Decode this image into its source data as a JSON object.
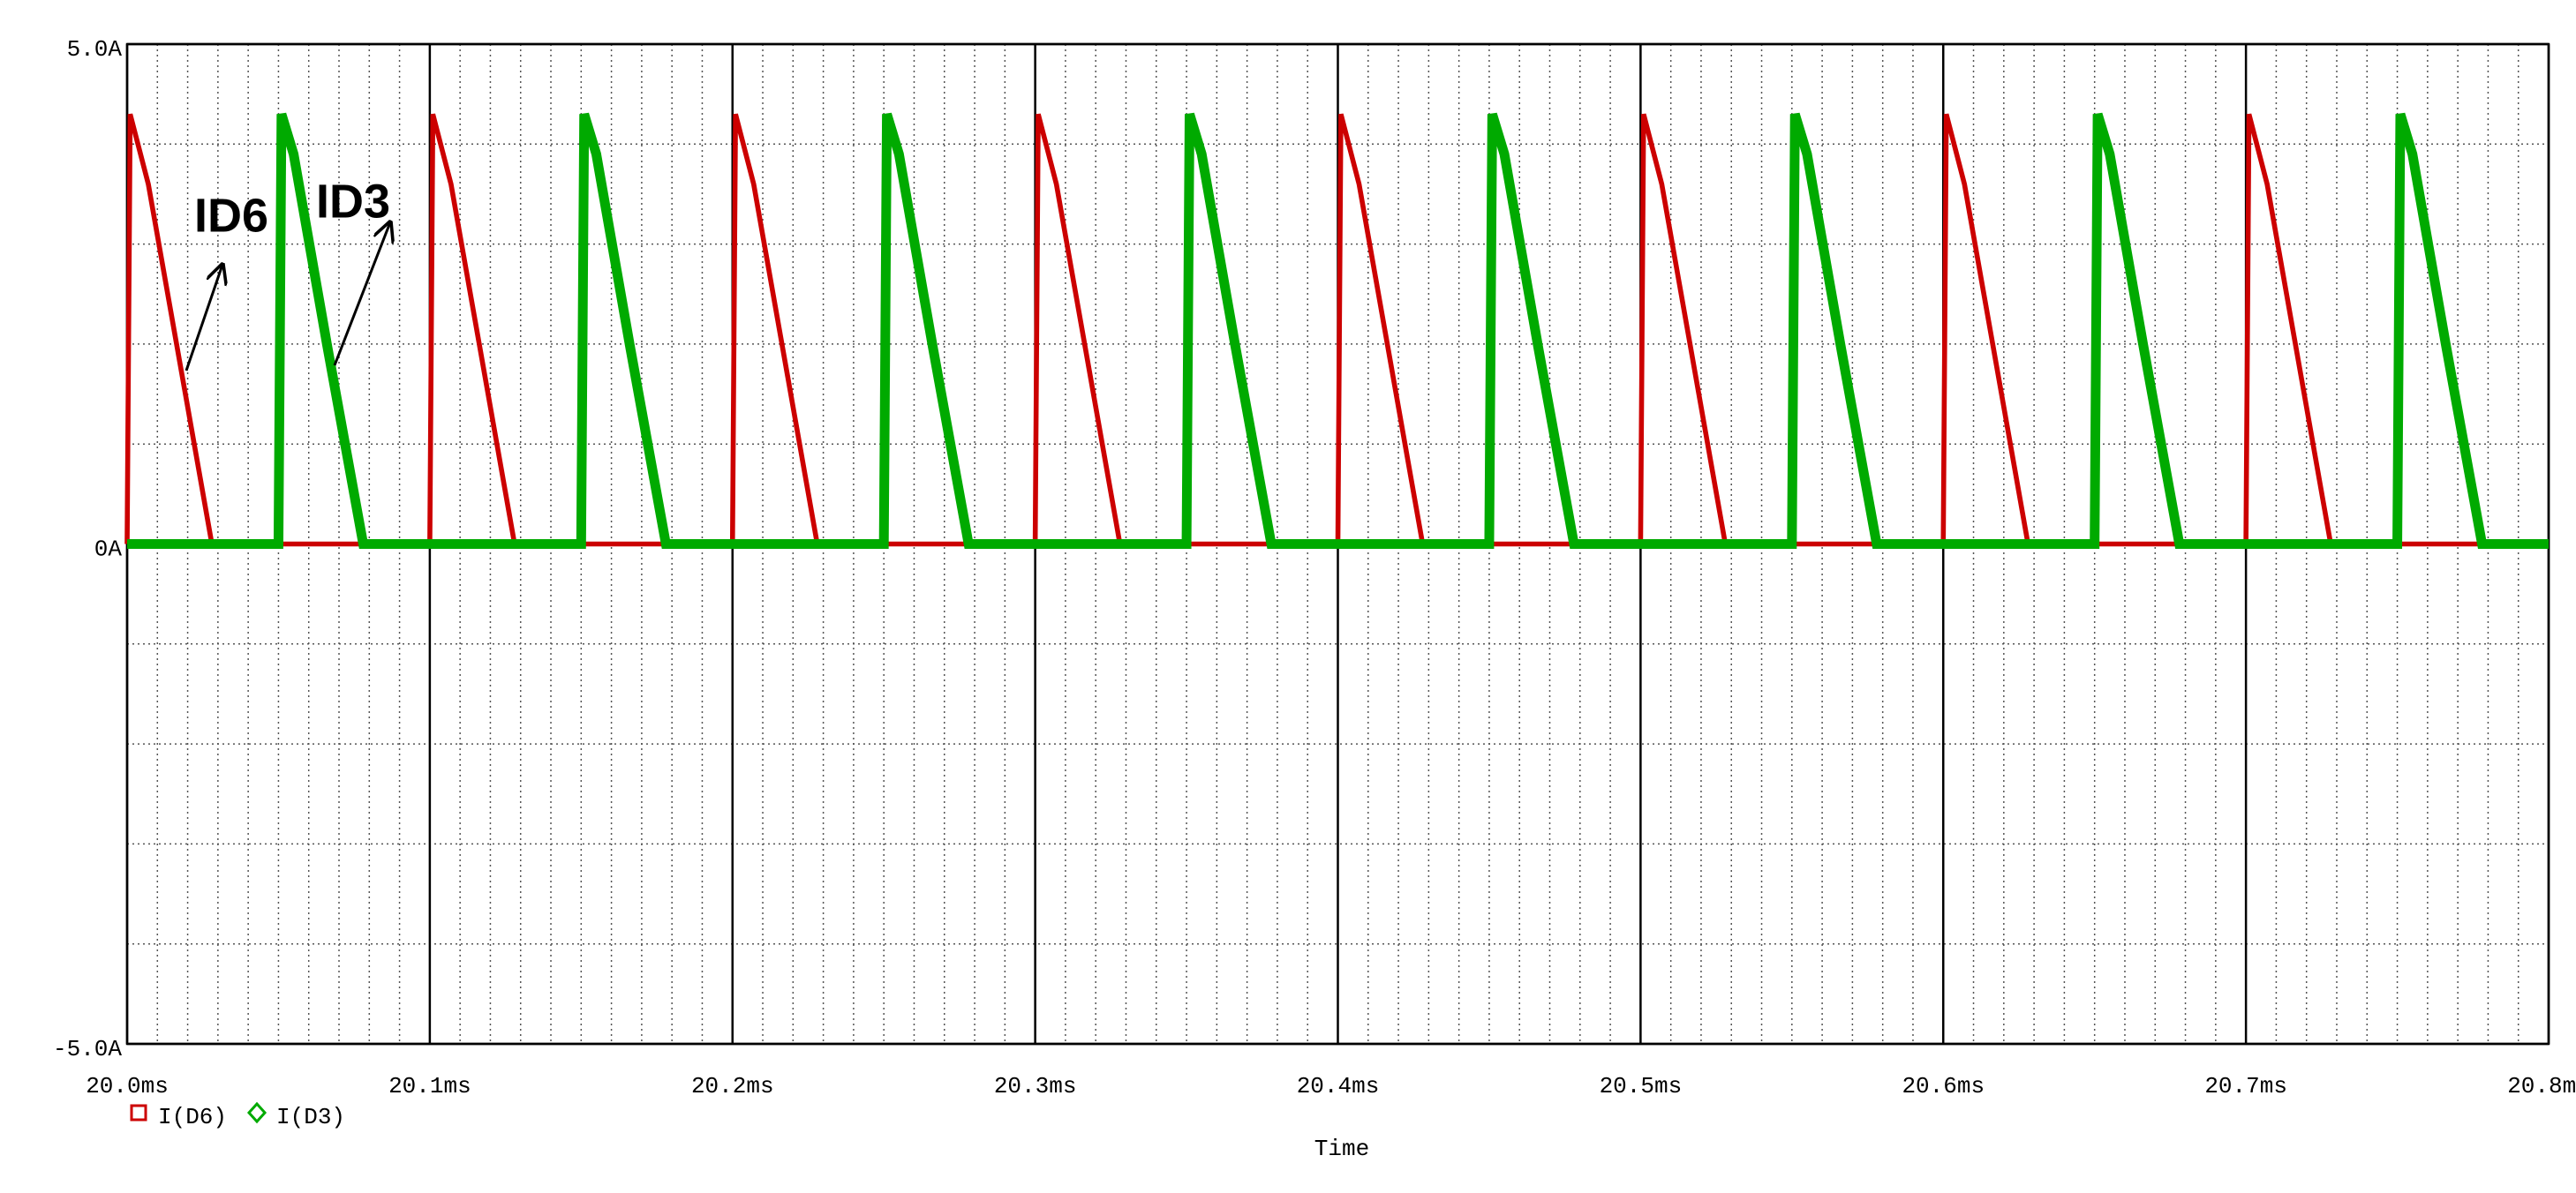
{
  "chart_data": {
    "type": "line",
    "xlabel": "Time",
    "x": [
      20.0,
      20.001,
      20.007,
      20.028,
      20.05,
      20.051,
      20.055,
      20.066,
      20.078,
      20.1,
      20.101,
      20.107,
      20.128,
      20.15,
      20.151,
      20.155,
      20.166,
      20.178,
      20.2,
      20.201,
      20.207,
      20.228,
      20.25,
      20.251,
      20.255,
      20.266,
      20.278,
      20.3,
      20.301,
      20.307,
      20.328,
      20.35,
      20.351,
      20.355,
      20.366,
      20.378,
      20.4,
      20.401,
      20.407,
      20.428,
      20.45,
      20.451,
      20.455,
      20.466,
      20.478,
      20.5,
      20.501,
      20.507,
      20.528,
      20.55,
      20.551,
      20.555,
      20.566,
      20.578,
      20.6,
      20.601,
      20.607,
      20.628,
      20.65,
      20.651,
      20.655,
      20.666,
      20.678,
      20.7,
      20.701,
      20.707,
      20.728,
      20.75,
      20.751,
      20.755,
      20.766,
      20.778,
      20.8
    ],
    "series": [
      {
        "name": "I(D6)",
        "color": "#cc0000",
        "marker": "square",
        "values": [
          0,
          4.3,
          3.6,
          0,
          0,
          0,
          0,
          0,
          0,
          0,
          4.3,
          3.6,
          0,
          0,
          0,
          0,
          0,
          0,
          0,
          4.3,
          3.6,
          0,
          0,
          0,
          0,
          0,
          0,
          0,
          4.3,
          3.6,
          0,
          0,
          0,
          0,
          0,
          0,
          0,
          4.3,
          3.6,
          0,
          0,
          0,
          0,
          0,
          0,
          0,
          4.3,
          3.6,
          0,
          0,
          0,
          0,
          0,
          0,
          0,
          4.3,
          3.6,
          0,
          0,
          0,
          0,
          0,
          0,
          0,
          4.3,
          3.6,
          0,
          0,
          0,
          0,
          0,
          0,
          0
        ]
      },
      {
        "name": "I(D3)",
        "color": "#00aa00",
        "marker": "diamond",
        "values": [
          0,
          0,
          0,
          0,
          0,
          4.3,
          3.9,
          2.0,
          0,
          0,
          0,
          0,
          0,
          0,
          4.3,
          3.9,
          2.0,
          0,
          0,
          0,
          0,
          0,
          0,
          4.3,
          3.9,
          2.0,
          0,
          0,
          0,
          0,
          0,
          0,
          4.3,
          3.9,
          2.0,
          0,
          0,
          0,
          0,
          0,
          0,
          4.3,
          3.9,
          2.0,
          0,
          0,
          0,
          0,
          0,
          0,
          4.3,
          3.9,
          2.0,
          0,
          0,
          0,
          0,
          0,
          0,
          4.3,
          3.9,
          2.0,
          0,
          0,
          0,
          0,
          0,
          0,
          4.3,
          3.9,
          2.0,
          0,
          0
        ]
      }
    ],
    "annotations": [
      {
        "text": "ID6",
        "color": "#cc0000"
      },
      {
        "text": "ID3",
        "color": "#000000"
      }
    ],
    "xlim": [
      20.0,
      20.8
    ],
    "xticks": [
      {
        "value": 20.0,
        "label": "20.0ms"
      },
      {
        "value": 20.1,
        "label": "20.1ms"
      },
      {
        "value": 20.2,
        "label": "20.2ms"
      },
      {
        "value": 20.3,
        "label": "20.3ms"
      },
      {
        "value": 20.4,
        "label": "20.4ms"
      },
      {
        "value": 20.5,
        "label": "20.5ms"
      },
      {
        "value": 20.6,
        "label": "20.6ms"
      },
      {
        "value": 20.7,
        "label": "20.7ms"
      },
      {
        "value": 20.8,
        "label": "20.8ms"
      }
    ],
    "ylim": [
      -5.0,
      5.0
    ],
    "yticks": [
      {
        "value": -5.0,
        "label": "-5.0A"
      },
      {
        "value": 0,
        "label": "0A"
      },
      {
        "value": 5.0,
        "label": "5.0A"
      }
    ],
    "grid": true,
    "minor_grid": true
  }
}
